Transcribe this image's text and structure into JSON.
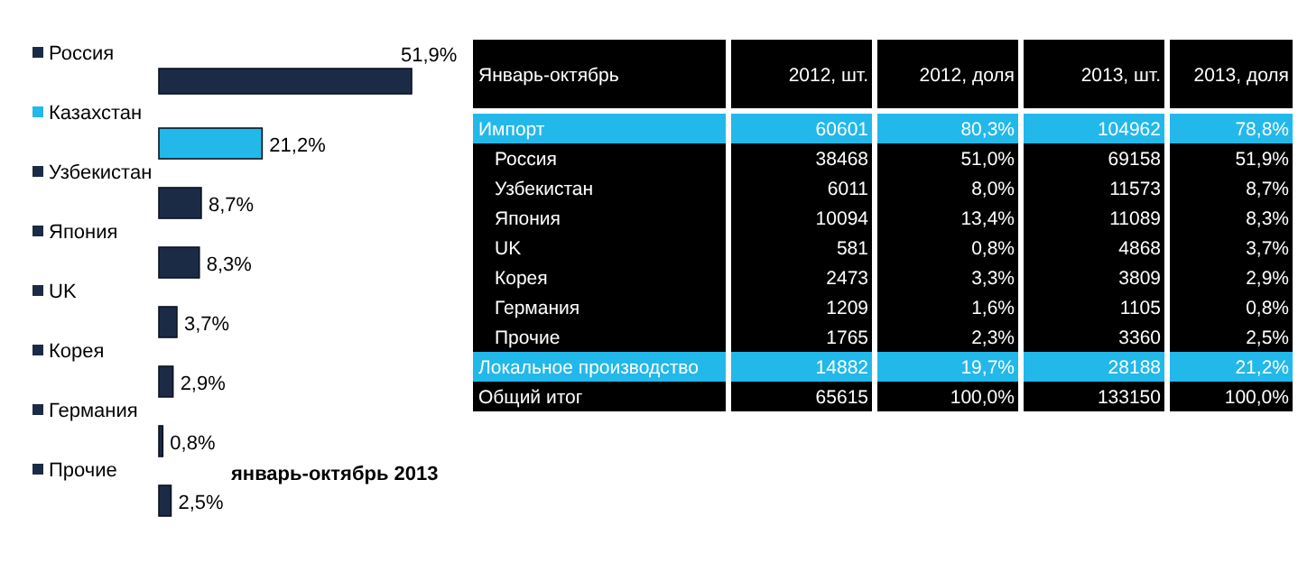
{
  "chart_data": [
    {
      "type": "bar",
      "orientation": "horizontal",
      "categories": [
        "Россия",
        "Казахстан",
        "Узбекистан",
        "Япония",
        "UK",
        "Корея",
        "Германия",
        "Прочие"
      ],
      "values": [
        51.9,
        21.2,
        8.7,
        8.3,
        3.7,
        2.9,
        0.8,
        2.5
      ],
      "colors": [
        "#1c2b45",
        "#22b8ea",
        "#1c2b45",
        "#1c2b45",
        "#1c2b45",
        "#1c2b45",
        "#1c2b45",
        "#1c2b45"
      ],
      "value_labels": [
        "51,9%",
        "21,2%",
        "8,7%",
        "8,3%",
        "3,7%",
        "2,9%",
        "0,8%",
        "2,5%"
      ],
      "annotations": [
        "январь-октябрь 2013"
      ]
    },
    {
      "type": "other",
      "categories": [
        "Январь-октябрь",
        "2012, шт.",
        "2012, доля",
        "2013, шт.",
        "2013, доля"
      ],
      "y_categories": [
        "Импорт",
        "Россия",
        "Узбекистан",
        "Япония",
        "UK",
        "Корея",
        "Германия",
        "Прочие",
        "Локальное производство",
        "Общий итог"
      ],
      "cell_labels": [
        [
          "60601",
          "80,3%",
          "104962",
          "78,8%"
        ],
        [
          "38468",
          "51,0%",
          "69158",
          "51,9%"
        ],
        [
          "6011",
          "8,0%",
          "11573",
          "8,7%"
        ],
        [
          "10094",
          "13,4%",
          "11089",
          "8,3%"
        ],
        [
          "581",
          "0,8%",
          "4868",
          "3,7%"
        ],
        [
          "2473",
          "3,3%",
          "3809",
          "2,9%"
        ],
        [
          "1209",
          "1,6%",
          "1105",
          "0,8%"
        ],
        [
          "1765",
          "2,3%",
          "3360",
          "2,5%"
        ],
        [
          "14882",
          "19,7%",
          "28188",
          "21,2%"
        ],
        [
          "65615",
          "100,0%",
          "133150",
          "100,0%"
        ]
      ]
    }
  ]
}
